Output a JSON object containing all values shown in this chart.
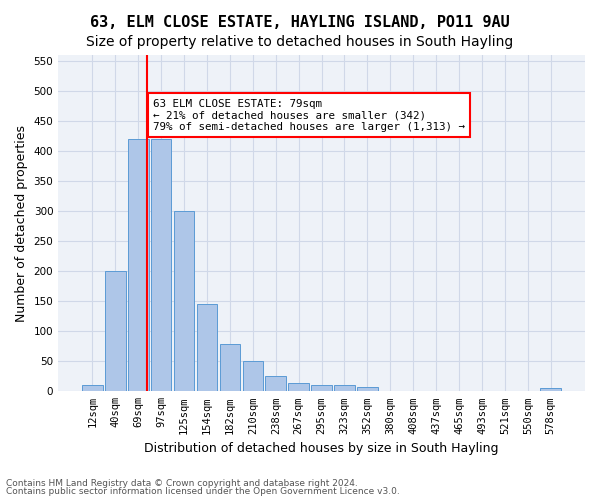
{
  "title1": "63, ELM CLOSE ESTATE, HAYLING ISLAND, PO11 9AU",
  "title2": "Size of property relative to detached houses in South Hayling",
  "xlabel": "Distribution of detached houses by size in South Hayling",
  "ylabel": "Number of detached properties",
  "categories": [
    "12sqm",
    "40sqm",
    "69sqm",
    "97sqm",
    "125sqm",
    "154sqm",
    "182sqm",
    "210sqm",
    "238sqm",
    "267sqm",
    "295sqm",
    "323sqm",
    "352sqm",
    "380sqm",
    "408sqm",
    "437sqm",
    "465sqm",
    "493sqm",
    "521sqm",
    "550sqm",
    "578sqm"
  ],
  "values": [
    10,
    200,
    420,
    420,
    300,
    145,
    78,
    50,
    25,
    13,
    11,
    10,
    7,
    0,
    0,
    0,
    0,
    0,
    0,
    0,
    5
  ],
  "bar_color": "#aec6e8",
  "bar_edge_color": "#5b9bd5",
  "red_line_x": 2,
  "property_sqm": 79,
  "annotation_text": "63 ELM CLOSE ESTATE: 79sqm\n← 21% of detached houses are smaller (342)\n79% of semi-detached houses are larger (1,313) →",
  "ylim": [
    0,
    560
  ],
  "yticks": [
    0,
    50,
    100,
    150,
    200,
    250,
    300,
    350,
    400,
    450,
    500,
    550
  ],
  "footer1": "Contains HM Land Registry data © Crown copyright and database right 2024.",
  "footer2": "Contains public sector information licensed under the Open Government Licence v3.0.",
  "bg_color": "#ffffff",
  "grid_color": "#d0d8e8",
  "title_fontsize": 11,
  "subtitle_fontsize": 10,
  "tick_fontsize": 7.5,
  "axis_label_fontsize": 9
}
